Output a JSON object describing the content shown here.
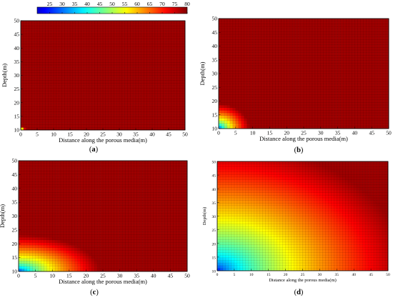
{
  "colorbar": {
    "ticks": [
      "25",
      "30",
      "35",
      "40",
      "45",
      "50",
      "55",
      "60",
      "65",
      "70",
      "75",
      "80"
    ],
    "min": 20,
    "max": 80,
    "colormap": "jet"
  },
  "chart_data": [
    {
      "type": "heatmap",
      "panel_label": "(a)",
      "xlabel": "Distance along the porous media(m)",
      "ylabel": "Depth(m)",
      "xticks": [
        "0",
        "5",
        "10",
        "15",
        "20",
        "25",
        "30",
        "35",
        "40",
        "45",
        "50"
      ],
      "yticks": [
        "10",
        "15",
        "20",
        "25",
        "30",
        "35",
        "40",
        "45",
        "50"
      ],
      "xlim": [
        0,
        50
      ],
      "ylim": [
        10,
        50
      ],
      "grid": true,
      "front_radius": 1.5,
      "front_depth_scale": 1.0
    },
    {
      "type": "heatmap",
      "panel_label": "(b)",
      "xlabel": "Distance along the porous media(m)",
      "ylabel": "Depth(m)",
      "xticks": [
        "0",
        "5",
        "10",
        "15",
        "20",
        "25",
        "30",
        "35",
        "40",
        "45",
        "50"
      ],
      "yticks": [
        "10",
        "15",
        "20",
        "25",
        "30",
        "35",
        "40",
        "45",
        "50"
      ],
      "xlim": [
        0,
        50
      ],
      "ylim": [
        10,
        50
      ],
      "grid": true,
      "front_radius": 9,
      "front_depth_scale": 1.0
    },
    {
      "type": "heatmap",
      "panel_label": "(c)",
      "xlabel": "Distance along the porous media(m)",
      "ylabel": "Depth(m)",
      "xticks": [
        "0",
        "5",
        "10",
        "15",
        "20",
        "25",
        "30",
        "35",
        "40",
        "45",
        "50"
      ],
      "yticks": [
        "10",
        "15",
        "20",
        "25",
        "30",
        "35",
        "40",
        "45",
        "50"
      ],
      "xlim": [
        0,
        50
      ],
      "ylim": [
        10,
        50
      ],
      "grid": true,
      "front_radius": 24,
      "front_depth_scale": 0.55
    },
    {
      "type": "heatmap",
      "panel_label": "(d)",
      "xlabel": "Distance along the porous media(m)",
      "ylabel": "Depth(m)",
      "xticks": [
        "0",
        "5",
        "10",
        "15",
        "20",
        "25",
        "30",
        "35",
        "40",
        "45",
        "50"
      ],
      "yticks": [
        "10",
        "15",
        "20",
        "25",
        "30",
        "35",
        "40",
        "45",
        "50"
      ],
      "xlim": [
        0,
        50
      ],
      "ylim": [
        10,
        50
      ],
      "grid": true,
      "front_radius": 55,
      "front_depth_scale": 0.85
    }
  ]
}
